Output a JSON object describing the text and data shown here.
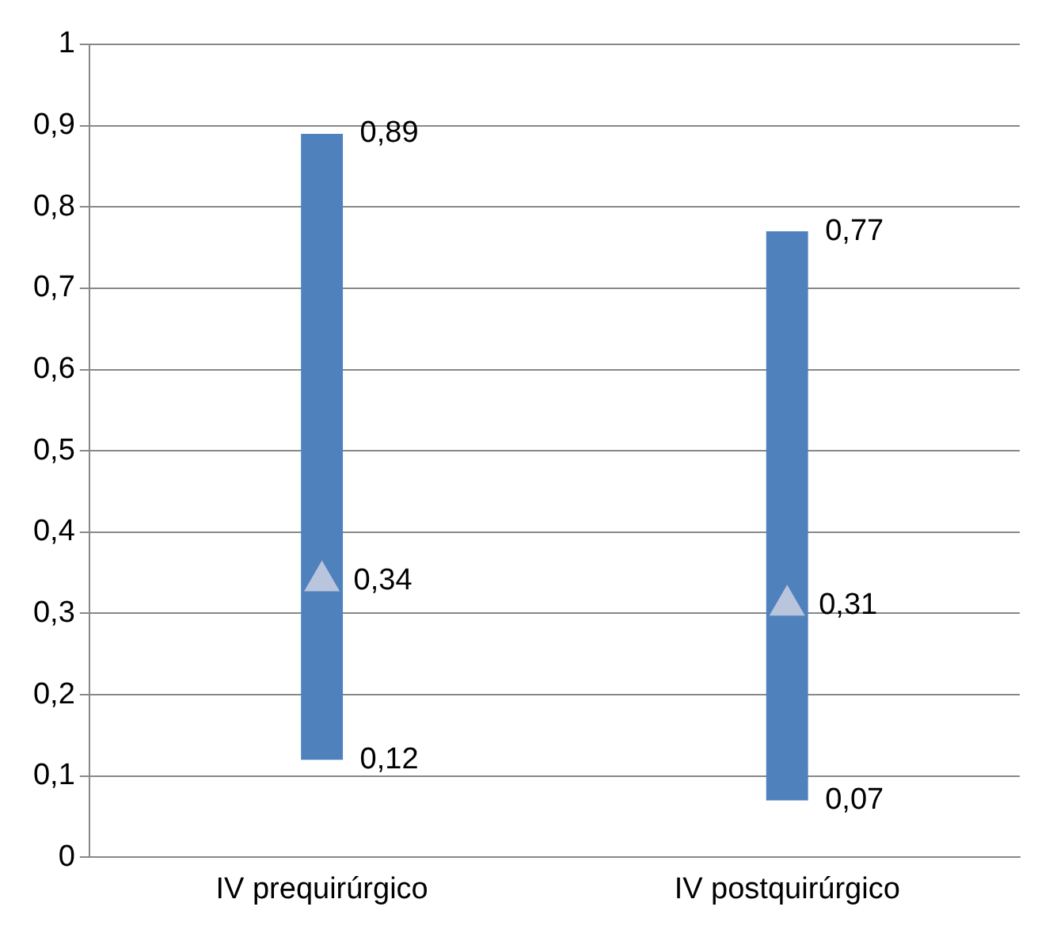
{
  "chart_data": {
    "type": "bar",
    "categories": [
      "IV prequirúrgico",
      "IV postquirúrgico"
    ],
    "series": [
      {
        "color": "#4f81bd",
        "base": [
          0.12,
          0.07
        ],
        "values": [
          0.77,
          0.7
        ]
      },
      {
        "type": "scatter",
        "color": "#b9c5dc",
        "marker": "triangle",
        "x": [
          "IV prequirúrgico",
          "IV postquirúrgico"
        ],
        "values": [
          0.34,
          0.31
        ],
        "value_labels": [
          "0,34",
          "0,31"
        ]
      }
    ],
    "annotations": [
      {
        "text": "0,89",
        "x": "IV prequirúrgico",
        "y": 0.89
      },
      {
        "text": "0,12",
        "x": "IV prequirúrgico",
        "y": 0.12
      },
      {
        "text": "0,77",
        "x": "IV postquirúrgico",
        "y": 0.77
      },
      {
        "text": "0,07",
        "x": "IV postquirúrgico",
        "y": 0.07
      }
    ],
    "ylim": [
      0,
      1
    ],
    "yticks": [
      {
        "value": 0,
        "label": "0"
      },
      {
        "value": 0.1,
        "label": "0,1"
      },
      {
        "value": 0.2,
        "label": "0,2"
      },
      {
        "value": 0.3,
        "label": "0,3"
      },
      {
        "value": 0.4,
        "label": "0,4"
      },
      {
        "value": 0.5,
        "label": "0,5"
      },
      {
        "value": 0.6,
        "label": "0,6"
      },
      {
        "value": 0.7,
        "label": "0,7"
      },
      {
        "value": 0.8,
        "label": "0,8"
      },
      {
        "value": 0.9,
        "label": "0,9"
      },
      {
        "value": 1,
        "label": "1"
      }
    ],
    "grid": "y",
    "legend": false
  }
}
